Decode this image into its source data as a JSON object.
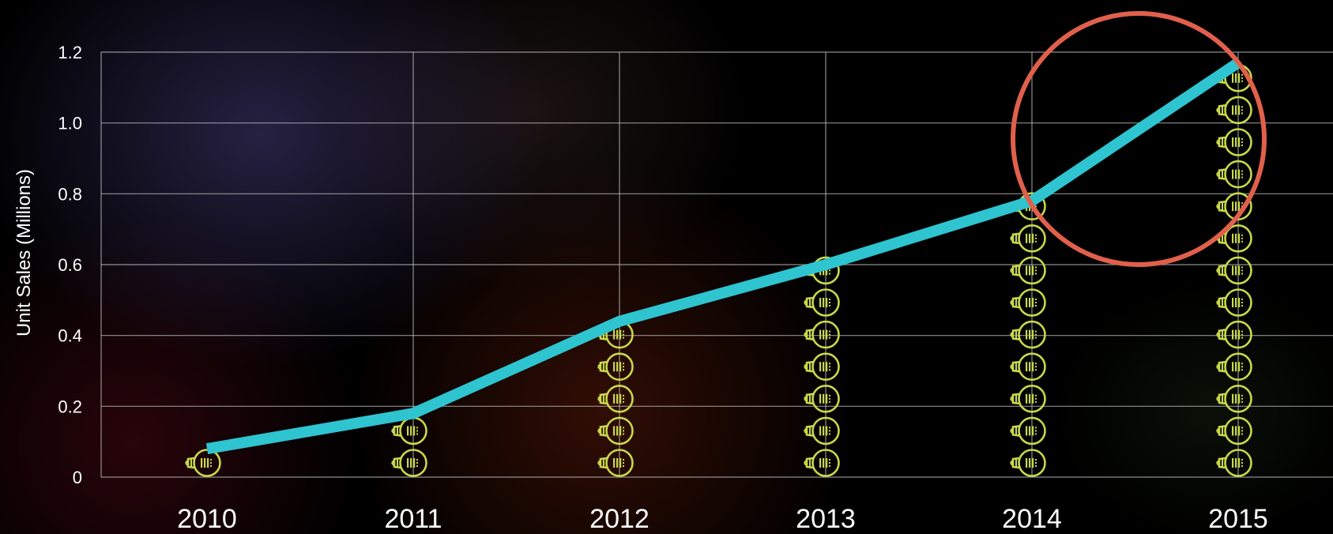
{
  "chart_data": {
    "type": "line",
    "title": "",
    "xlabel": "",
    "ylabel": "Unit Sales (Millions)",
    "x": [
      "2010",
      "2011",
      "2012",
      "2013",
      "2014",
      "2015"
    ],
    "series": [
      {
        "values": [
          0.08,
          0.18,
          0.44,
          0.6,
          0.78,
          1.17
        ]
      }
    ],
    "bulb_counts": [
      1,
      2,
      5,
      7,
      9,
      13
    ],
    "ylim": [
      0,
      1.2
    ],
    "yticks": [
      {
        "value": 0,
        "label": "0"
      },
      {
        "value": 0.2,
        "label": "0.2"
      },
      {
        "value": 0.4,
        "label": "0.4"
      },
      {
        "value": 0.6,
        "label": "0.6"
      },
      {
        "value": 0.8,
        "label": "0.8"
      },
      {
        "value": 1.0,
        "label": "1.0"
      },
      {
        "value": 1.2,
        "label": "1.2"
      }
    ],
    "grid": true,
    "annotation": "circle highlighting the 2014–2015 segment",
    "colors": {
      "line": "#2ec4d0",
      "bulb": "#c8d84a",
      "highlight_circle": "#e0604c",
      "grid": "#bdbdbd",
      "text": "#ffffff"
    }
  }
}
